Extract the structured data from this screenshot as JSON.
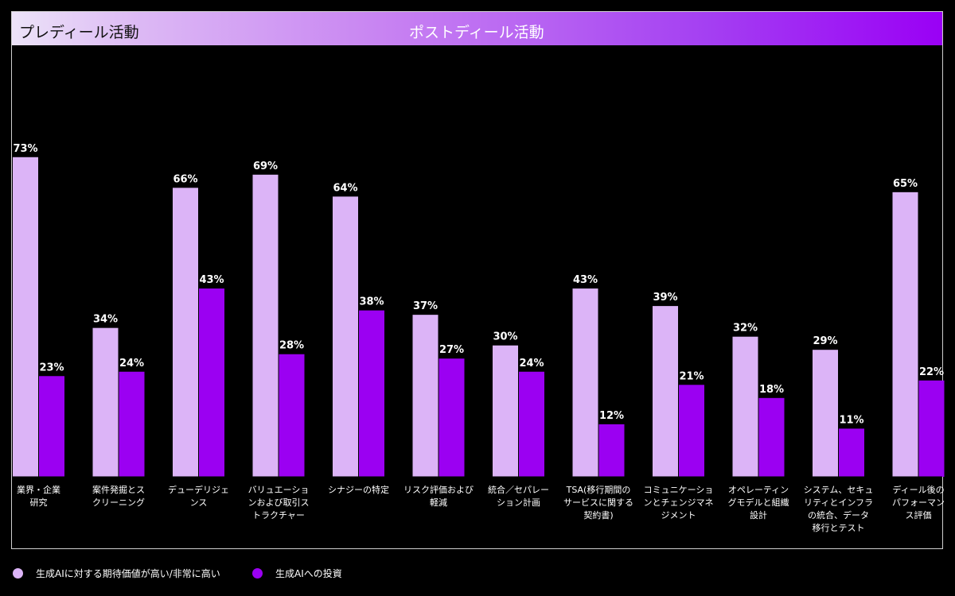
{
  "header": {
    "pre_label": "プレディール活動",
    "post_label": "ポストディール活動"
  },
  "colors": {
    "expectation": "#dcb4f7",
    "investment": "#9b00f2",
    "background": "#000000"
  },
  "legend": {
    "items": [
      {
        "label": "生成AIに対する期待価値が高い/非常に高い",
        "color": "#dcb4f7"
      },
      {
        "label": "生成AIへの投資",
        "color": "#9b00f2"
      }
    ]
  },
  "chart_data": {
    "type": "bar",
    "title": "",
    "xlabel": "",
    "ylabel": "",
    "ylim": [
      0,
      100
    ],
    "grid": false,
    "legend_position": "bottom-left",
    "categories": [
      [
        "業界・企業",
        "研究"
      ],
      [
        "案件発掘とス",
        "クリーニング"
      ],
      [
        "デューデリジェ",
        "ンス"
      ],
      [
        "バリュエーショ",
        "ンおよび取引ス",
        "トラクチャー"
      ],
      [
        "シナジーの特定"
      ],
      [
        "リスク評価および",
        "軽減"
      ],
      [
        "統合／セパレー",
        "ション計画"
      ],
      [
        "TSA(移行期間の",
        "サービスに関する",
        "契約書)"
      ],
      [
        "コミュニケーショ",
        "ンとチェンジマネ",
        "ジメント"
      ],
      [
        "オペレーティン",
        "グモデルと組織",
        "設計"
      ],
      [
        "システム、セキュ",
        "リティとインフラ",
        "の統合、データ",
        "移行とテスト"
      ],
      [
        "ディール後の",
        "パフォーマン",
        "ス評価"
      ]
    ],
    "series": [
      {
        "name": "生成AIに対する期待価値が高い/非常に高い",
        "values": [
          73,
          34,
          66,
          69,
          64,
          37,
          30,
          43,
          39,
          32,
          29,
          65
        ]
      },
      {
        "name": "生成AIへの投資",
        "values": [
          23,
          24,
          43,
          28,
          38,
          27,
          24,
          12,
          21,
          18,
          11,
          22
        ]
      }
    ],
    "value_suffix": "%"
  }
}
